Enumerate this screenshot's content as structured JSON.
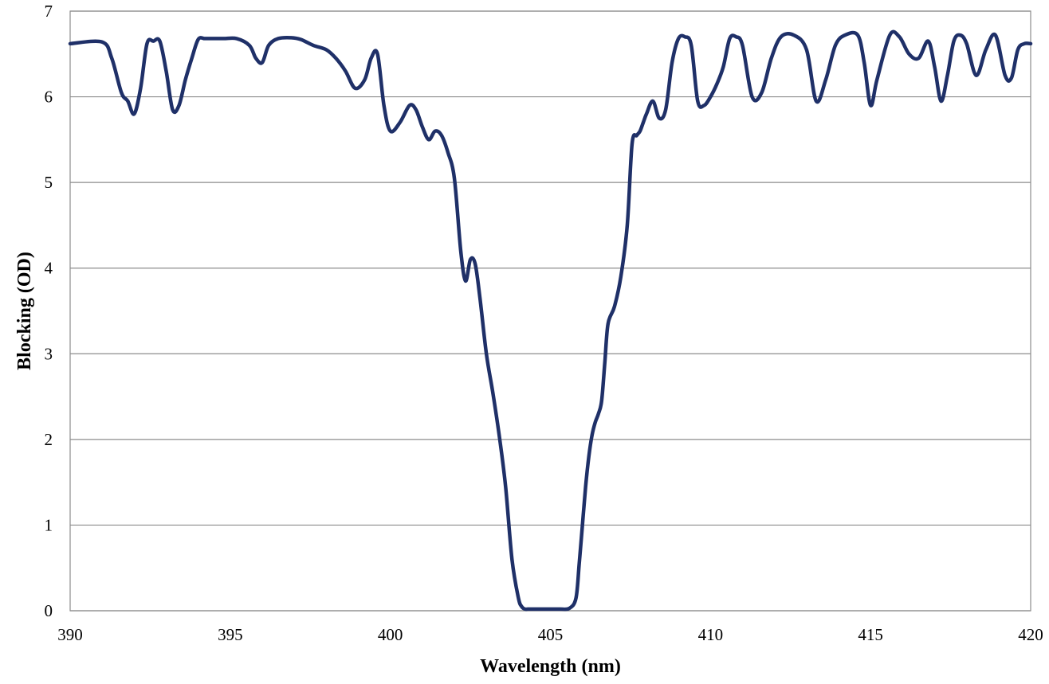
{
  "chart_data": {
    "type": "line",
    "title": "",
    "xlabel": "Wavelength (nm)",
    "ylabel": "Blocking (OD)",
    "xlim": [
      390,
      420
    ],
    "ylim": [
      0,
      7
    ],
    "x_ticks": [
      390,
      395,
      400,
      405,
      410,
      415,
      420
    ],
    "y_ticks": [
      0,
      1,
      2,
      3,
      4,
      5,
      6,
      7
    ],
    "x_tick_labels": [
      "390",
      "395",
      "400",
      "405",
      "410",
      "415",
      "420"
    ],
    "y_tick_labels": [
      "0",
      "1",
      "2",
      "3",
      "4",
      "5",
      "6",
      "7"
    ],
    "grid": "horizontal",
    "legend": "none",
    "line_color": "#1f3068",
    "series": [
      {
        "x": [
          390.0,
          391.0,
          391.3,
          391.6,
          391.8,
          392.0,
          392.2,
          392.4,
          392.6,
          392.8,
          393.0,
          393.2,
          393.4,
          393.6,
          393.8,
          394.0,
          394.2,
          394.4,
          394.8,
          395.2,
          395.6,
          395.8,
          396.0,
          396.2,
          396.5,
          396.9,
          397.2,
          397.6,
          398.0,
          398.3,
          398.6,
          398.9,
          399.2,
          399.4,
          399.6,
          399.8,
          400.0,
          400.3,
          400.6,
          400.8,
          401.0,
          401.2,
          401.4,
          401.6,
          401.8,
          402.0,
          402.2,
          402.35,
          402.5,
          402.65,
          402.8,
          403.0,
          403.2,
          403.4,
          403.6,
          403.8,
          404.0,
          404.1,
          404.2,
          404.3,
          404.4,
          404.6,
          404.8,
          405.0,
          405.3,
          405.6,
          405.8,
          405.9,
          406.0,
          406.1,
          406.2,
          406.3,
          406.4,
          406.5,
          406.6,
          406.7,
          406.8,
          407.0,
          407.2,
          407.4,
          407.55,
          407.7,
          407.8,
          407.9,
          408.0,
          408.2,
          408.4,
          408.6,
          408.8,
          409.0,
          409.2,
          409.4,
          409.6,
          409.8,
          410.0,
          410.2,
          410.4,
          410.6,
          410.8,
          411.0,
          411.3,
          411.6,
          411.9,
          412.2,
          412.6,
          413.0,
          413.3,
          413.6,
          413.9,
          414.2,
          414.6,
          414.8,
          415.0,
          415.2,
          415.6,
          415.9,
          416.2,
          416.5,
          416.8,
          417.0,
          417.2,
          417.4,
          417.6,
          417.8,
          418.0,
          418.3,
          418.6,
          418.9,
          419.2,
          419.4,
          419.6,
          419.8,
          420.0
        ],
        "y": [
          6.62,
          6.64,
          6.45,
          6.05,
          5.95,
          5.8,
          6.1,
          6.62,
          6.65,
          6.65,
          6.3,
          5.85,
          5.9,
          6.2,
          6.45,
          6.67,
          6.68,
          6.68,
          6.68,
          6.68,
          6.6,
          6.45,
          6.4,
          6.6,
          6.68,
          6.69,
          6.67,
          6.6,
          6.55,
          6.45,
          6.3,
          6.1,
          6.2,
          6.45,
          6.5,
          5.9,
          5.6,
          5.7,
          5.9,
          5.85,
          5.65,
          5.5,
          5.6,
          5.55,
          5.35,
          5.05,
          4.2,
          3.85,
          4.1,
          4.05,
          3.65,
          3.0,
          2.55,
          2.05,
          1.45,
          0.6,
          0.15,
          0.05,
          0.02,
          0.02,
          0.02,
          0.02,
          0.02,
          0.02,
          0.02,
          0.03,
          0.15,
          0.55,
          1.0,
          1.45,
          1.8,
          2.05,
          2.2,
          2.3,
          2.45,
          2.9,
          3.35,
          3.55,
          3.9,
          4.5,
          5.45,
          5.55,
          5.6,
          5.7,
          5.8,
          5.95,
          5.75,
          5.85,
          6.4,
          6.68,
          6.7,
          6.6,
          5.95,
          5.9,
          6.0,
          6.15,
          6.35,
          6.68,
          6.7,
          6.6,
          6.0,
          6.05,
          6.45,
          6.7,
          6.72,
          6.55,
          5.95,
          6.2,
          6.6,
          6.72,
          6.72,
          6.4,
          5.9,
          6.2,
          6.72,
          6.7,
          6.5,
          6.45,
          6.65,
          6.35,
          5.95,
          6.25,
          6.65,
          6.72,
          6.62,
          6.25,
          6.55,
          6.72,
          6.25,
          6.22,
          6.55,
          6.62,
          6.62
        ]
      }
    ]
  }
}
